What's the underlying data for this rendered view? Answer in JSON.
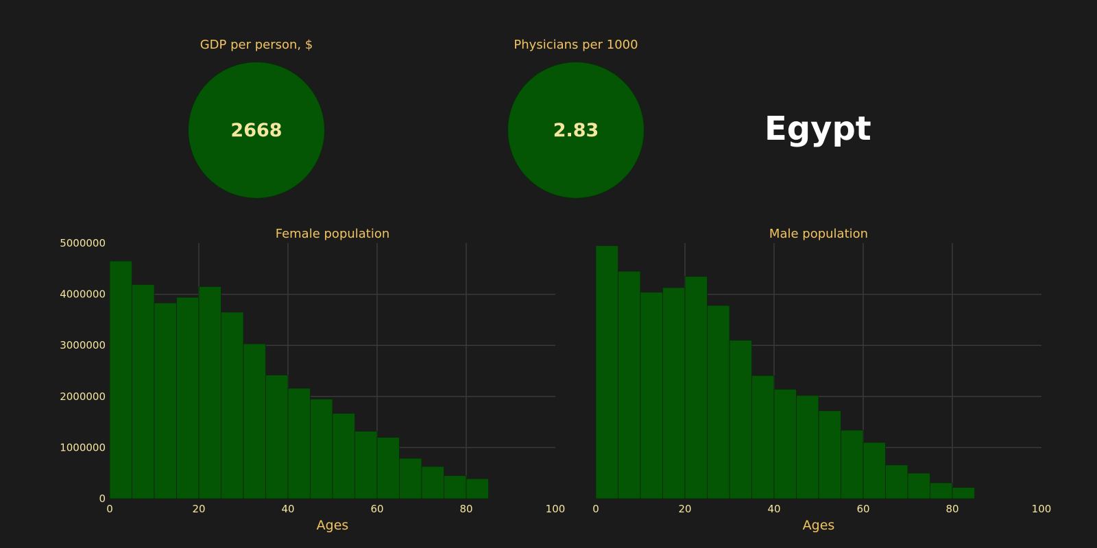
{
  "kpis": [
    {
      "title": "GDP per person, $",
      "value": "2668"
    },
    {
      "title": "Physicians per 1000",
      "value": "2.83"
    }
  ],
  "country": "Egypt",
  "colors": {
    "background": "#1b1b1b",
    "bar": "#045504",
    "accent_text": "#f2c462",
    "value_text": "#f5e6a0",
    "grid": "#3a3a3a"
  },
  "chart_data": [
    {
      "type": "bar",
      "title": "Female population",
      "xlabel": "Ages",
      "ylabel": "",
      "xlim": [
        0,
        100
      ],
      "ylim": [
        0,
        5000000
      ],
      "xticks": [
        "0",
        "20",
        "40",
        "60",
        "80",
        "100"
      ],
      "yticks": [
        "0",
        "1000000",
        "2000000",
        "3000000",
        "4000000",
        "5000000"
      ],
      "bin_width": 5,
      "bin_starts": [
        0,
        5,
        10,
        15,
        20,
        25,
        30,
        35,
        40,
        45,
        50,
        55,
        60,
        65,
        70,
        75,
        80
      ],
      "values": [
        4650000,
        4190000,
        3830000,
        3940000,
        4150000,
        3650000,
        3030000,
        2420000,
        2160000,
        1950000,
        1670000,
        1320000,
        1200000,
        790000,
        630000,
        450000,
        390000
      ],
      "grid": true
    },
    {
      "type": "bar",
      "title": "Male population",
      "xlabel": "Ages",
      "ylabel": "",
      "xlim": [
        0,
        100
      ],
      "ylim": [
        0,
        5000000
      ],
      "xticks": [
        "0",
        "20",
        "40",
        "60",
        "80",
        "100"
      ],
      "yticks": [],
      "bin_width": 5,
      "bin_starts": [
        0,
        5,
        10,
        15,
        20,
        25,
        30,
        35,
        40,
        45,
        50,
        55,
        60,
        65,
        70,
        75,
        80
      ],
      "values": [
        4950000,
        4450000,
        4040000,
        4130000,
        4350000,
        3780000,
        3100000,
        2410000,
        2140000,
        2020000,
        1720000,
        1340000,
        1100000,
        660000,
        500000,
        310000,
        220000
      ],
      "grid": true
    }
  ]
}
